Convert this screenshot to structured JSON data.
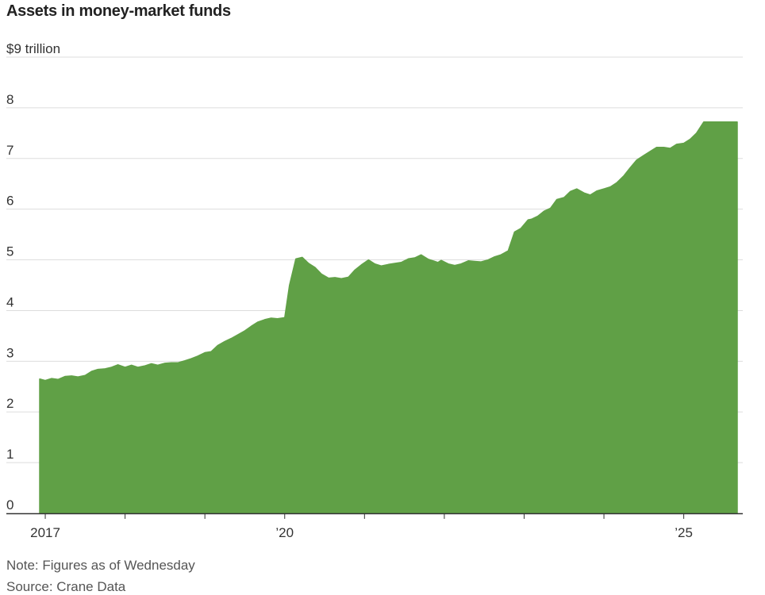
{
  "title": "Assets in money-market funds",
  "note": "Note: Figures as of Wednesday",
  "source": "Source: Crane Data",
  "colors": {
    "area": "#60a046",
    "grid": "#dddddd",
    "axis": "#333333"
  },
  "chart_data": {
    "type": "area",
    "title": "Assets in money-market funds",
    "xlabel": "",
    "ylabel": "",
    "ylim": [
      0,
      9
    ],
    "xlim": [
      2016.93,
      2025.67
    ],
    "y_ticks": [
      {
        "value": 9,
        "label": "$9 trillion"
      },
      {
        "value": 8,
        "label": "8"
      },
      {
        "value": 7,
        "label": "7"
      },
      {
        "value": 6,
        "label": "6"
      },
      {
        "value": 5,
        "label": "5"
      },
      {
        "value": 4,
        "label": "4"
      },
      {
        "value": 3,
        "label": "3"
      },
      {
        "value": 2,
        "label": "2"
      },
      {
        "value": 1,
        "label": "1"
      },
      {
        "value": 0,
        "label": "0"
      }
    ],
    "x_ticks": [
      {
        "value": 2017,
        "label": "2017"
      },
      {
        "value": 2018,
        "label": ""
      },
      {
        "value": 2019,
        "label": ""
      },
      {
        "value": 2020,
        "label": "’20"
      },
      {
        "value": 2021,
        "label": ""
      },
      {
        "value": 2022,
        "label": ""
      },
      {
        "value": 2023,
        "label": ""
      },
      {
        "value": 2024,
        "label": ""
      },
      {
        "value": 2025,
        "label": "’25"
      }
    ],
    "grid": true,
    "series": [
      {
        "x": [
          2016.93,
          2017.0,
          2017.08,
          2017.16,
          2017.25,
          2017.33,
          2017.41,
          2017.5,
          2017.58,
          2017.66,
          2017.75,
          2017.83,
          2017.91,
          2018.0,
          2018.08,
          2018.16,
          2018.25,
          2018.33,
          2018.41,
          2018.5,
          2018.58,
          2018.66,
          2018.75,
          2018.83,
          2018.91,
          2019.0,
          2019.08,
          2019.16,
          2019.25,
          2019.33,
          2019.41,
          2019.5,
          2019.58,
          2019.66,
          2019.75,
          2019.83,
          2019.91,
          2020.0,
          2020.06,
          2020.14,
          2020.22,
          2020.3,
          2020.38,
          2020.46,
          2020.55,
          2020.63,
          2020.71,
          2020.8,
          2020.88,
          2020.96,
          2021.05,
          2021.13,
          2021.21,
          2021.3,
          2021.38,
          2021.46,
          2021.55,
          2021.63,
          2021.71,
          2021.8,
          2021.88,
          2021.92,
          2021.96,
          2022.05,
          2022.13,
          2022.21,
          2022.3,
          2022.38,
          2022.46,
          2022.55,
          2022.63,
          2022.71,
          2022.8,
          2022.88,
          2022.96,
          2023.05,
          2023.09,
          2023.17,
          2023.25,
          2023.33,
          2023.41,
          2023.5,
          2023.58,
          2023.66,
          2023.75,
          2023.83,
          2023.91,
          2024.0,
          2024.08,
          2024.16,
          2024.25,
          2024.33,
          2024.41,
          2024.5,
          2024.58,
          2024.66,
          2024.75,
          2024.83,
          2024.91,
          2025.0,
          2025.08,
          2025.16,
          2025.25,
          2025.33,
          2025.41,
          2025.5,
          2025.58,
          2025.64,
          2025.67
        ],
        "values": [
          2.65,
          2.62,
          2.66,
          2.64,
          2.7,
          2.71,
          2.69,
          2.72,
          2.8,
          2.84,
          2.85,
          2.88,
          2.93,
          2.88,
          2.92,
          2.88,
          2.91,
          2.95,
          2.92,
          2.96,
          2.97,
          2.97,
          3.01,
          3.05,
          3.1,
          3.17,
          3.19,
          3.31,
          3.39,
          3.45,
          3.52,
          3.6,
          3.69,
          3.77,
          3.82,
          3.85,
          3.84,
          3.86,
          4.5,
          5.02,
          5.05,
          4.93,
          4.85,
          4.72,
          4.64,
          4.65,
          4.63,
          4.66,
          4.8,
          4.9,
          5.0,
          4.92,
          4.88,
          4.91,
          4.93,
          4.95,
          5.02,
          5.04,
          5.1,
          5.01,
          4.97,
          4.95,
          4.99,
          4.92,
          4.89,
          4.92,
          4.98,
          4.97,
          4.96,
          5.0,
          5.06,
          5.1,
          5.18,
          5.55,
          5.62,
          5.79,
          5.8,
          5.86,
          5.96,
          6.02,
          6.19,
          6.23,
          6.35,
          6.4,
          6.32,
          6.28,
          6.36,
          6.4,
          6.44,
          6.52,
          6.66,
          6.82,
          6.97,
          7.06,
          7.14,
          7.22,
          7.22,
          7.2,
          7.28,
          7.3,
          7.38,
          7.5,
          7.72,
          7.72,
          7.72,
          7.72,
          7.72,
          7.72,
          7.72
        ]
      }
    ]
  }
}
